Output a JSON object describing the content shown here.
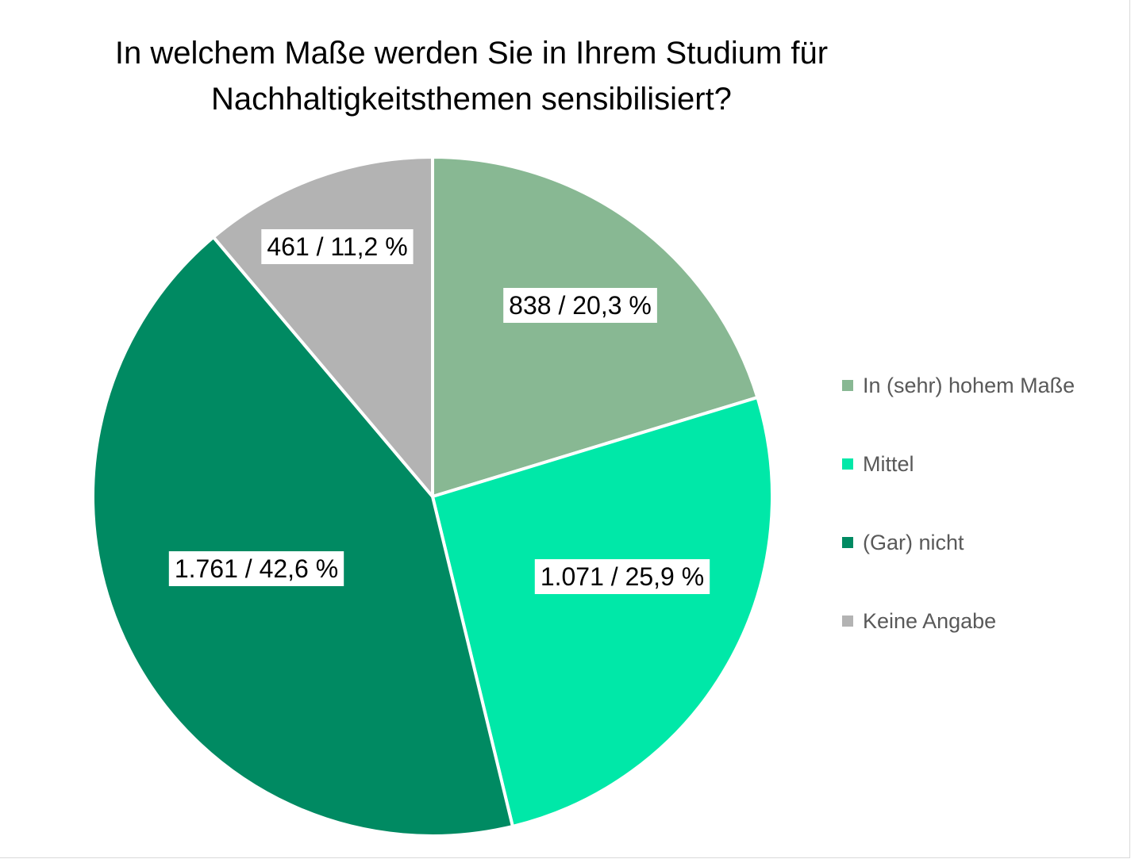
{
  "chart_data": {
    "type": "pie",
    "title": "In welchem Maße werden Sie in Ihrem Studium für Nachhaltigkeitsthemen sensibilisiert?",
    "title_lines": [
      "In welchem Maße werden Sie in Ihrem Studium für",
      "Nachhaltigkeitsthemen sensibilisiert?"
    ],
    "legend_position": "right",
    "start_angle_deg": 0,
    "direction": "clockwise",
    "slices": [
      {
        "name": "In (sehr) hohem Maße",
        "value": 838,
        "percent": 20.3,
        "label": "838 / 20,3 %",
        "color": "#88b893"
      },
      {
        "name": "Mittel",
        "value": 1071,
        "percent": 25.9,
        "label": "1.071 / 25,9 %",
        "color": "#00e8a8"
      },
      {
        "name": "(Gar) nicht",
        "value": 1761,
        "percent": 42.6,
        "label": "1.761 / 42,6 %",
        "color": "#008a62"
      },
      {
        "name": "Keine Angabe",
        "value": 461,
        "percent": 11.2,
        "label": "461 / 11,2 %",
        "color": "#b3b3b3"
      }
    ]
  }
}
